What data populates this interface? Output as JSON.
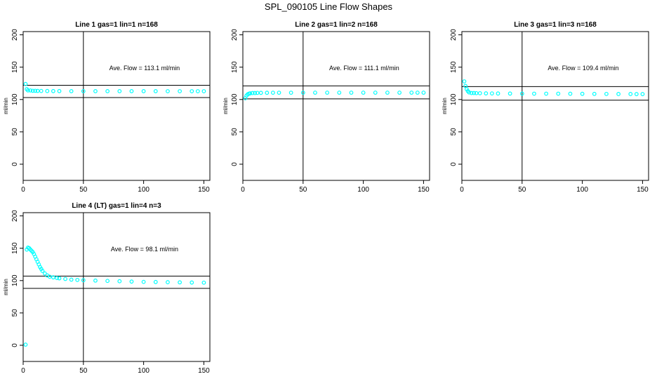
{
  "page_title": "SPL_090105  Line Flow Shapes",
  "chart_data": [
    {
      "type": "scatter",
      "title": "Line 1 gas=1 lin=1 n=168",
      "xlabel": "",
      "ylabel": "ml/min",
      "xlim": [
        0,
        155
      ],
      "ylim": [
        -25,
        205
      ],
      "xticks": [
        0,
        50,
        100,
        150
      ],
      "yticks": [
        0,
        50,
        100,
        150,
        200
      ],
      "annotation": "Ave. Flow =  113.1  ml/min",
      "vline": 50,
      "hlines": [
        122,
        103
      ],
      "point_color": "#00ffff",
      "series": [
        {
          "x": [
            2,
            3,
            4,
            6,
            8,
            10,
            12,
            15,
            20,
            25,
            30,
            40,
            50,
            60,
            70,
            80,
            90,
            100,
            110,
            120,
            130,
            140,
            145,
            150
          ],
          "y": [
            124,
            116,
            114,
            114,
            113.5,
            113.5,
            113.3,
            113.2,
            113.1,
            113,
            113,
            112.9,
            112.9,
            112.9,
            112.9,
            112.9,
            112.9,
            112.9,
            112.9,
            112.8,
            112.8,
            112.8,
            112.8,
            112.8
          ]
        }
      ]
    },
    {
      "type": "scatter",
      "title": "Line 2 gas=1 lin=2 n=168",
      "xlabel": "",
      "ylabel": "ml/min",
      "xlim": [
        0,
        155
      ],
      "ylim": [
        -25,
        205
      ],
      "xticks": [
        0,
        50,
        100,
        150
      ],
      "yticks": [
        0,
        50,
        100,
        150,
        200
      ],
      "annotation": "Ave. Flow =  111.1  ml/min",
      "vline": 50,
      "hlines": [
        121,
        101
      ],
      "point_color": "#00ffff",
      "series": [
        {
          "x": [
            2,
            3,
            4,
            5,
            6,
            8,
            10,
            12,
            15,
            20,
            25,
            30,
            40,
            50,
            60,
            70,
            80,
            90,
            100,
            110,
            120,
            130,
            140,
            145,
            150
          ],
          "y": [
            102,
            106,
            108,
            109,
            109.5,
            110,
            110,
            110.2,
            110.3,
            110.4,
            110.5,
            110.5,
            110.5,
            110.6,
            110.6,
            110.6,
            110.6,
            110.6,
            110.6,
            110.6,
            110.6,
            110.6,
            110.6,
            110.6,
            110.6
          ]
        }
      ]
    },
    {
      "type": "scatter",
      "title": "Line 3 gas=1 lin=3 n=168",
      "xlabel": "",
      "ylabel": "ml/min",
      "xlim": [
        0,
        155
      ],
      "ylim": [
        -25,
        205
      ],
      "xticks": [
        0,
        50,
        100,
        150
      ],
      "yticks": [
        0,
        50,
        100,
        150,
        200
      ],
      "annotation": "Ave. Flow =  109.4  ml/min",
      "vline": 50,
      "hlines": [
        120,
        99
      ],
      "point_color": "#00ffff",
      "series": [
        {
          "x": [
            2,
            3,
            4,
            5,
            6,
            8,
            10,
            12,
            15,
            20,
            25,
            30,
            40,
            50,
            60,
            70,
            80,
            90,
            100,
            110,
            120,
            130,
            140,
            145,
            150
          ],
          "y": [
            128,
            121,
            116,
            113,
            111,
            110,
            110,
            109.8,
            109.7,
            109.5,
            109.4,
            109.3,
            109.2,
            109.1,
            109,
            109,
            109,
            108.9,
            108.8,
            108.7,
            108.6,
            108.5,
            108.5,
            108.4,
            108.4
          ]
        }
      ]
    },
    {
      "type": "scatter",
      "title": "Line 4 (LT) gas=1 lin=4 n=3",
      "xlabel": "",
      "ylabel": "ml/min",
      "xlim": [
        0,
        155
      ],
      "ylim": [
        -25,
        205
      ],
      "xticks": [
        0,
        50,
        100,
        150
      ],
      "yticks": [
        0,
        50,
        100,
        150,
        200
      ],
      "annotation": "Ave. Flow =  98.1  ml/min",
      "vline": 50,
      "hlines": [
        107,
        88
      ],
      "point_color": "#00ffff",
      "series": [
        {
          "x": [
            2,
            3,
            4,
            5,
            6,
            7,
            8,
            9,
            10,
            11,
            12,
            13,
            14,
            15,
            16,
            18,
            20,
            22,
            25,
            28,
            30,
            35,
            40,
            45,
            50,
            60,
            70,
            80,
            90,
            100,
            110,
            120,
            130,
            140,
            150
          ],
          "y": [
            1,
            148,
            151,
            150,
            148,
            146,
            144,
            141,
            137,
            133,
            129,
            125,
            121,
            118,
            115,
            111,
            108,
            106,
            105,
            104,
            103.5,
            102.5,
            101.5,
            101,
            100.5,
            100,
            99.5,
            99,
            98.5,
            98,
            97.8,
            97.5,
            97.3,
            97,
            96.8
          ]
        }
      ]
    }
  ]
}
